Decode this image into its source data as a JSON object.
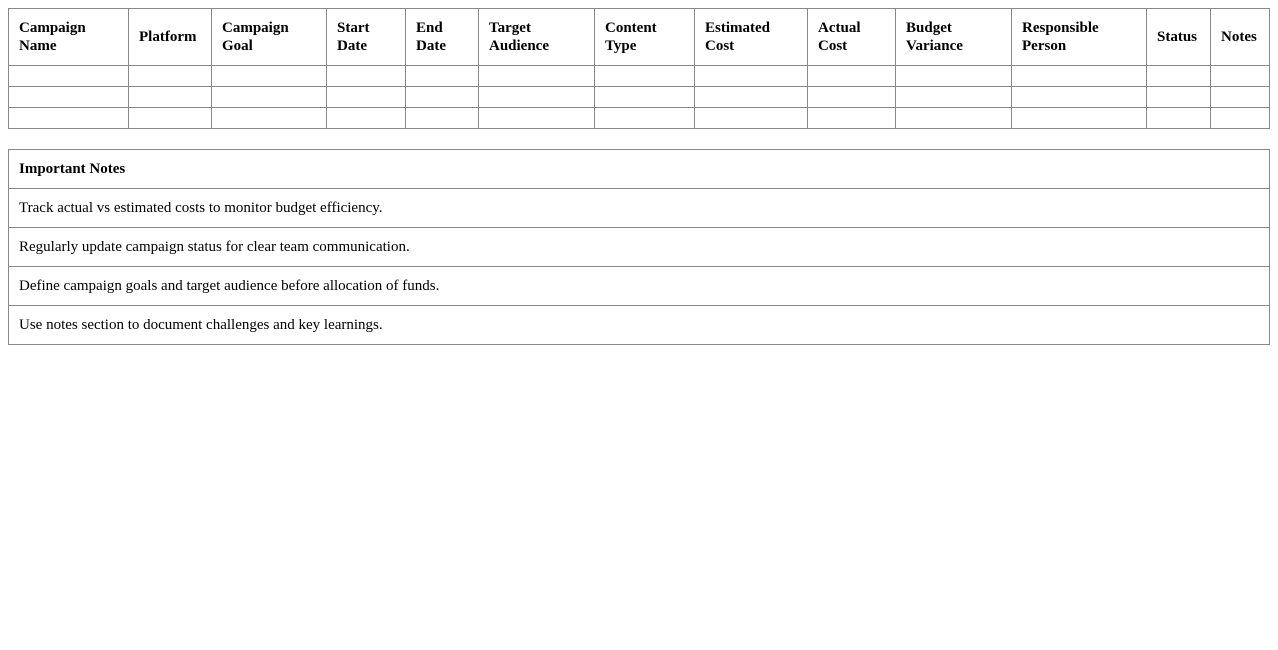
{
  "campaign_table": {
    "headers": [
      "Campaign Name",
      "Platform",
      "Campaign Goal",
      "Start Date",
      "End Date",
      "Target Audience",
      "Content Type",
      "Estimated Cost",
      "Actual Cost",
      "Budget Variance",
      "Responsible Person",
      "Status",
      "Notes"
    ],
    "rows": [
      [
        "",
        "",
        "",
        "",
        "",
        "",
        "",
        "",
        "",
        "",
        "",
        "",
        ""
      ],
      [
        "",
        "",
        "",
        "",
        "",
        "",
        "",
        "",
        "",
        "",
        "",
        "",
        ""
      ],
      [
        "",
        "",
        "",
        "",
        "",
        "",
        "",
        "",
        "",
        "",
        "",
        "",
        ""
      ]
    ]
  },
  "notes": {
    "title": "Important Notes",
    "items": [
      "Track actual vs estimated costs to monitor budget efficiency.",
      "Regularly update campaign status for clear team communication.",
      "Define campaign goals and target audience before allocation of funds.",
      "Use notes section to document challenges and key learnings."
    ]
  }
}
